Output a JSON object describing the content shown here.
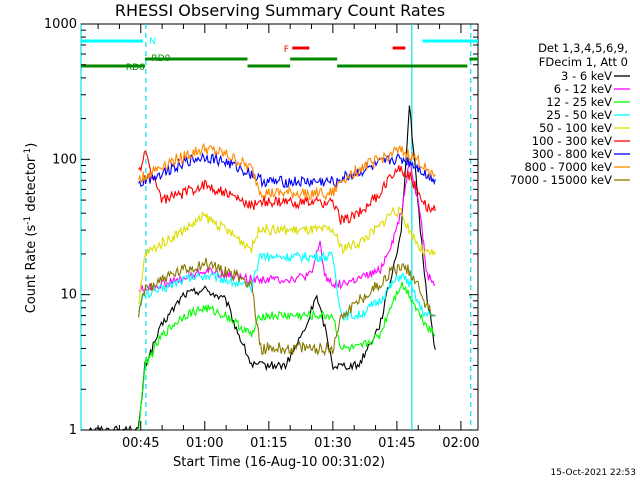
{
  "chart_data": {
    "type": "line",
    "title": "RHESSI Observing Summary Count Rates",
    "xlabel": "Start Time (16-Aug-10 00:31:02)",
    "ylabel_main": "Count Rate (s",
    "ylabel_sup1": "-1",
    "ylabel_mid": " detector",
    "ylabel_sup2": "-1",
    "ylabel_end": ")",
    "yscale": "log",
    "ylim": [
      1,
      1000
    ],
    "xlim_minutes": [
      31.0,
      124.0
    ],
    "y_ticks": [
      {
        "value": 1,
        "label": "1"
      },
      {
        "value": 10,
        "label": "10"
      },
      {
        "value": 100,
        "label": "100"
      },
      {
        "value": 1000,
        "label": "1000"
      }
    ],
    "x_ticks": [
      {
        "minute": 45,
        "label": "00:45"
      },
      {
        "minute": 60,
        "label": "01:00"
      },
      {
        "minute": 75,
        "label": "01:15"
      },
      {
        "minute": 90,
        "label": "01:30"
      },
      {
        "minute": 105,
        "label": "01:45"
      },
      {
        "minute": 120,
        "label": "02:00"
      }
    ],
    "legend_header": [
      "Det 1,3,4,5,6,9,",
      "FDecim 1, Att 0"
    ],
    "series": [
      {
        "name": "3 - 6 keV",
        "color": "#000000",
        "x": [
          31,
          44.5,
          46,
          50,
          55,
          60,
          65,
          67,
          71,
          73,
          75,
          79,
          84,
          86,
          88,
          90,
          92,
          96,
          101,
          104,
          106,
          108,
          110.5,
          112,
          114
        ],
        "y": [
          1,
          1,
          3,
          6,
          10,
          11,
          9,
          6,
          3,
          3,
          3,
          3,
          6,
          10,
          6,
          3,
          3,
          3,
          6,
          15,
          30,
          250,
          30,
          10,
          4
        ]
      },
      {
        "name": "6 - 12 keV",
        "color": "#ff00ff",
        "x": [
          44.5,
          46,
          50,
          55,
          60,
          65,
          71,
          73,
          75,
          80,
          85,
          87,
          88,
          90,
          92,
          96,
          101,
          104,
          106,
          108,
          110.5,
          112,
          114
        ],
        "y": [
          11,
          11,
          12,
          13,
          15,
          14,
          13,
          13,
          13,
          13,
          14,
          25,
          14,
          12,
          12,
          13,
          15,
          25,
          40,
          100,
          40,
          14,
          12
        ]
      },
      {
        "name": "12 - 25 keV",
        "color": "#00ff00",
        "x": [
          44.5,
          46,
          50,
          55,
          60,
          65,
          71,
          73,
          75,
          85,
          90,
          92,
          96,
          101,
          104,
          106,
          108,
          110.5,
          112,
          114
        ],
        "y": [
          1,
          3,
          5,
          7,
          8,
          7,
          5,
          7,
          7,
          7,
          7,
          4,
          4,
          5,
          9,
          12,
          10,
          7,
          6,
          5
        ]
      },
      {
        "name": "25 - 50 keV",
        "color": "#00ffff",
        "x": [
          44.5,
          46,
          50,
          55,
          60,
          65,
          71,
          73,
          75,
          85,
          90,
          92,
          96,
          101,
          104,
          106,
          108,
          110.5,
          112,
          114
        ],
        "y": [
          8,
          10,
          11,
          13,
          14,
          13,
          11,
          20,
          19,
          19,
          19,
          7,
          7,
          9,
          12,
          14,
          12,
          8,
          7,
          7
        ]
      },
      {
        "name": "50 - 100 keV",
        "color": "#dddd00",
        "x": [
          44.5,
          46,
          50,
          55,
          60,
          65,
          71,
          73,
          75,
          85,
          90,
          92,
          96,
          101,
          104,
          106,
          108,
          110.5,
          112,
          114
        ],
        "y": [
          8,
          20,
          24,
          30,
          38,
          30,
          22,
          32,
          30,
          30,
          30,
          22,
          24,
          32,
          42,
          40,
          30,
          22,
          20,
          20
        ]
      },
      {
        "name": "100 - 300 keV",
        "color": "#ff0000",
        "x": [
          44.5,
          46,
          50,
          55,
          60,
          65,
          71,
          73,
          75,
          85,
          90,
          92,
          96,
          101,
          104,
          106,
          108,
          110.5,
          112,
          114
        ],
        "y": [
          80,
          110,
          50,
          56,
          65,
          56,
          45,
          50,
          48,
          48,
          48,
          35,
          40,
          55,
          80,
          85,
          75,
          55,
          45,
          42
        ]
      },
      {
        "name": "300 - 800 keV",
        "color": "#0000ff",
        "x": [
          44.5,
          46,
          50,
          55,
          60,
          65,
          71,
          73,
          75,
          85,
          90,
          92,
          96,
          101,
          104,
          106,
          108,
          110.5,
          112,
          114
        ],
        "y": [
          65,
          70,
          80,
          95,
          105,
          95,
          78,
          70,
          68,
          68,
          68,
          72,
          80,
          92,
          100,
          100,
          95,
          85,
          75,
          72
        ]
      },
      {
        "name": "800 - 7000 keV",
        "color": "#ff8800",
        "x": [
          44.5,
          46,
          50,
          55,
          60,
          65,
          71,
          73,
          75,
          85,
          90,
          92,
          96,
          101,
          104,
          106,
          108,
          110.5,
          112,
          114
        ],
        "y": [
          70,
          75,
          90,
          105,
          120,
          108,
          85,
          58,
          56,
          56,
          56,
          70,
          85,
          100,
          112,
          115,
          108,
          95,
          82,
          78
        ]
      },
      {
        "name": "7000 - 15000 keV",
        "color": "#887700",
        "x": [
          44.5,
          46,
          50,
          55,
          60,
          65,
          71,
          73,
          75,
          85,
          90,
          92,
          96,
          101,
          104,
          106,
          108,
          110.5,
          112,
          114
        ],
        "y": [
          7,
          11,
          13,
          15,
          17,
          15,
          12,
          4,
          4,
          4,
          4,
          7,
          9,
          12,
          15,
          16,
          15,
          11,
          8,
          7
        ]
      }
    ],
    "flag_labels": {
      "N": "N",
      "F": "F",
      "RD0": "RD0",
      "RD6": "RD6"
    },
    "flag_colors": {
      "N": "#00ffff",
      "F": "#ee0000",
      "RD": "#008800"
    },
    "flag_segments": {
      "N": [
        [
          31,
          45.5
        ],
        [
          111,
          124
        ]
      ],
      "F": [
        [
          80.5,
          84.5
        ],
        [
          104,
          107
        ]
      ],
      "RD0": [
        [
          46,
          70
        ],
        [
          80,
          91
        ],
        [
          122,
          124
        ]
      ],
      "RD6": [
        [
          31,
          46
        ],
        [
          70,
          80
        ],
        [
          91,
          121.5
        ]
      ]
    },
    "cyan_lines_solid": [
      31,
      108.5
    ],
    "cyan_lines_dashed": [
      46.2,
      122.3
    ],
    "footer_date": "15-Oct-2021 22:53"
  }
}
